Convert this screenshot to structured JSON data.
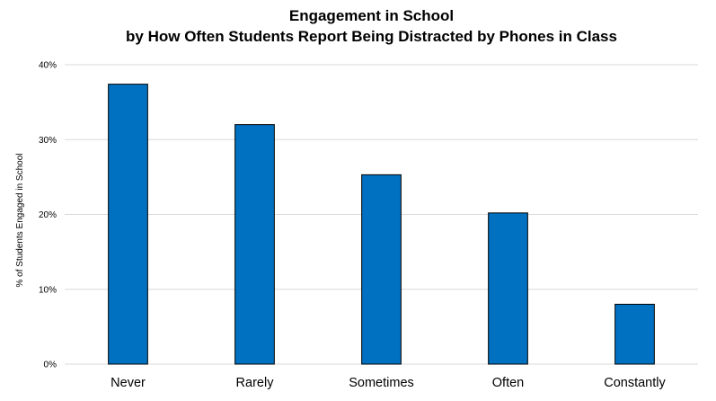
{
  "chart_data": {
    "type": "bar",
    "title": [
      "Engagement in School",
      "by How Often Students Report Being Distracted by Phones in Class"
    ],
    "ylabel": "% of Students Engaged in School",
    "xlabel": "",
    "categories": [
      "Never",
      "Rarely",
      "Sometimes",
      "Often",
      "Constantly"
    ],
    "values": [
      37.4,
      32.0,
      25.3,
      20.2,
      8.0
    ],
    "ylim": [
      0,
      40
    ],
    "yticks": [
      0,
      10,
      20,
      30,
      40
    ],
    "ytick_labels": [
      "0%",
      "10%",
      "20%",
      "30%",
      "40%"
    ],
    "grid": true,
    "legend": "none",
    "bar_color": "#0070C0",
    "bar_edge_color": "#000000"
  }
}
